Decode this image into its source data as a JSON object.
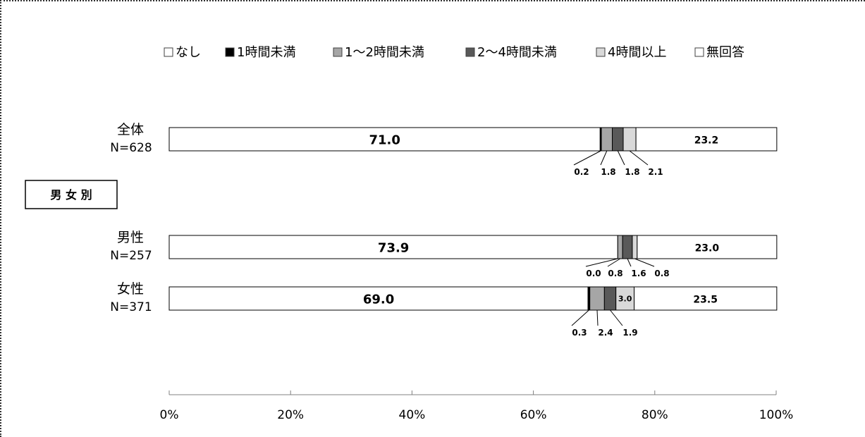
{
  "chart_data": {
    "type": "bar",
    "orientation": "horizontal",
    "stacked": true,
    "percent": true,
    "legend_position": "top",
    "series": [
      {
        "name": "なし",
        "color": "#ffffff"
      },
      {
        "name": "1時間未満",
        "color": "#000000"
      },
      {
        "name": "1～2時間未満",
        "color": "#a6a6a6"
      },
      {
        "name": "2～4時間未満",
        "color": "#595959"
      },
      {
        "name": "4時間以上",
        "color": "#d9d9d9"
      },
      {
        "name": "無回答",
        "color": "#ffffff"
      }
    ],
    "group_label": "男 女 別",
    "categories": [
      {
        "label": "全体",
        "n": "N=628",
        "values": [
          71.0,
          0.2,
          1.8,
          1.8,
          2.1,
          23.2
        ]
      },
      {
        "label": "男性",
        "n": "N=257",
        "values": [
          73.9,
          0.0,
          0.8,
          1.6,
          0.8,
          23.0
        ]
      },
      {
        "label": "女性",
        "n": "N=371",
        "values": [
          69.0,
          0.3,
          2.4,
          1.9,
          3.0,
          23.5
        ]
      }
    ],
    "x_ticks": [
      "0%",
      "20%",
      "40%",
      "60%",
      "80%",
      "100%"
    ],
    "xlim": [
      0,
      100
    ],
    "grid": false
  }
}
